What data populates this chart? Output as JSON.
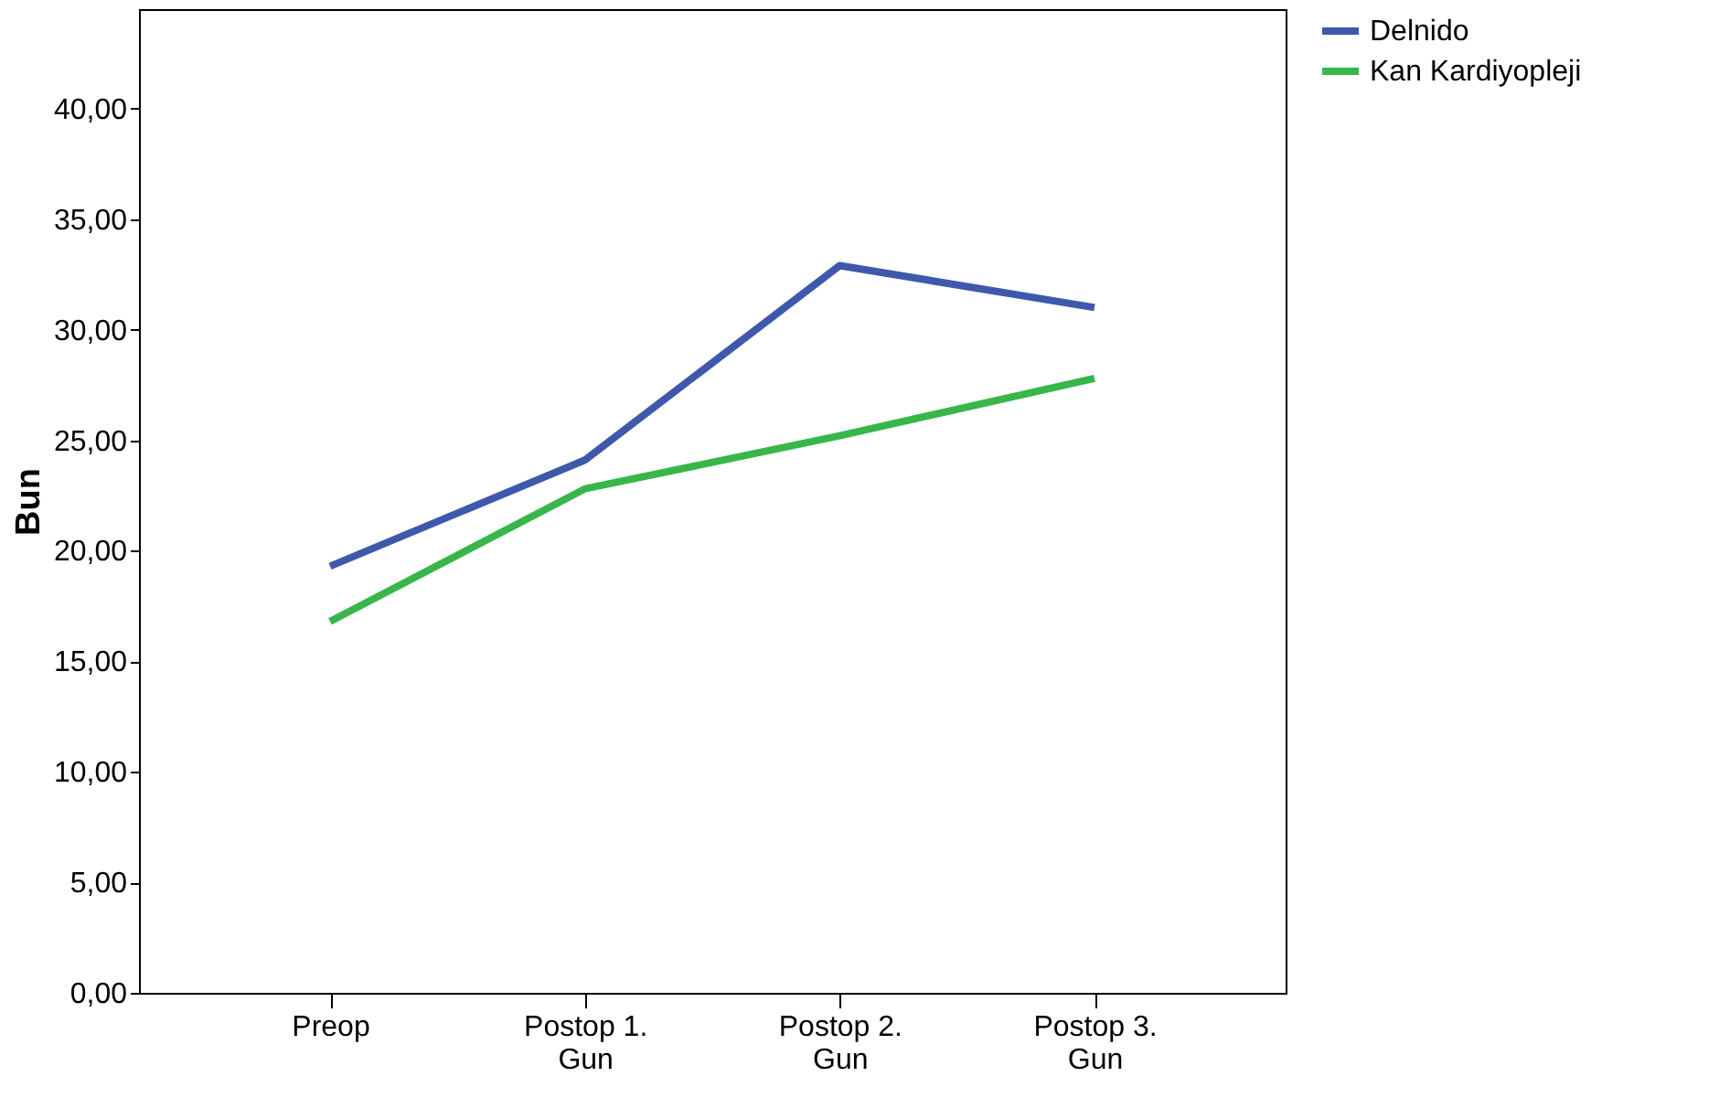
{
  "chart_data": {
    "type": "line",
    "ylabel": "Bun",
    "categories": [
      "Preop",
      "Postop 1.\nGun",
      "Postop 2.\nGun",
      "Postop 3.\nGun"
    ],
    "series": [
      {
        "name": "Delnido",
        "color": "#3e58ac",
        "values": [
          19.3,
          24.1,
          32.9,
          31.0
        ]
      },
      {
        "name": "Kan Kardiyopleji",
        "color": "#38b64a",
        "values": [
          16.8,
          22.8,
          25.2,
          27.8
        ]
      }
    ],
    "ylim": [
      0,
      44.5
    ],
    "yticks": [
      {
        "value": 0,
        "label": "0,00"
      },
      {
        "value": 5,
        "label": "5,00"
      },
      {
        "value": 10,
        "label": "10,00"
      },
      {
        "value": 15,
        "label": "15,00"
      },
      {
        "value": 20,
        "label": "20,00"
      },
      {
        "value": 25,
        "label": "25,00"
      },
      {
        "value": 30,
        "label": "30,00"
      },
      {
        "value": 35,
        "label": "35,00"
      },
      {
        "value": 40,
        "label": "40,00"
      }
    ],
    "grid": false,
    "legend": "right",
    "line_style": "solid",
    "marker": "none"
  }
}
